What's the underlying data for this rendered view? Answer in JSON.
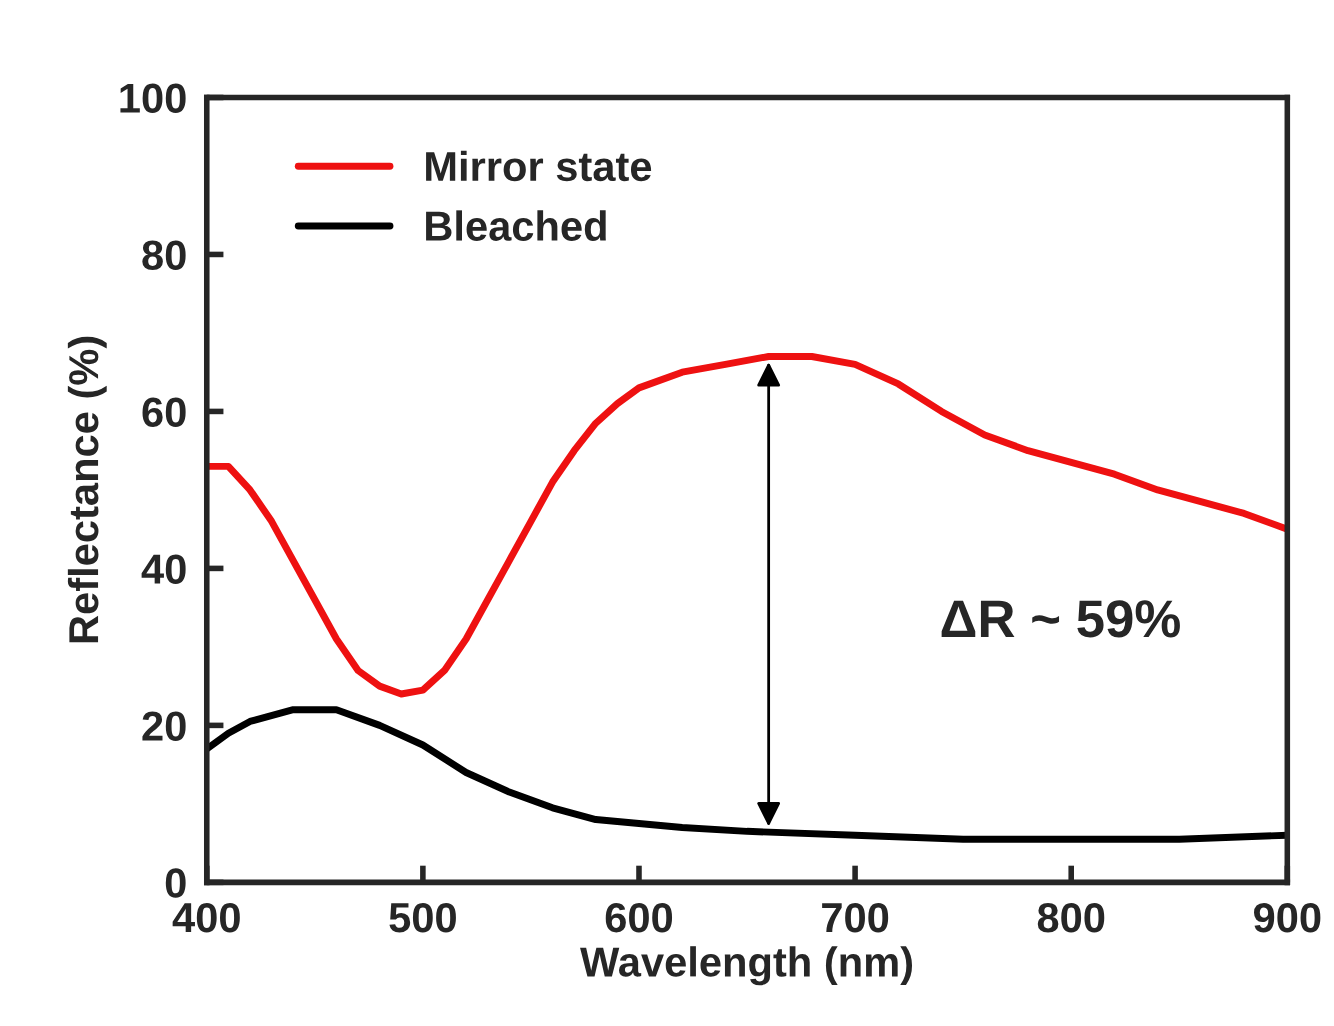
{
  "chart_data": {
    "type": "line",
    "xlabel": "Wavelength (nm)",
    "ylabel": "Reflectance (%)",
    "xlim": [
      400,
      900
    ],
    "ylim": [
      0,
      100
    ],
    "xticks": [
      400,
      500,
      600,
      700,
      800,
      900
    ],
    "yticks": [
      0,
      20,
      40,
      60,
      80,
      100
    ],
    "grid": false,
    "legend": "top left",
    "marker": "none",
    "line_style": "solid",
    "series": [
      {
        "name": "Mirror state",
        "color": "#ee1111",
        "x": [
          400,
          410,
          420,
          430,
          440,
          450,
          460,
          470,
          480,
          490,
          500,
          510,
          520,
          530,
          540,
          550,
          560,
          570,
          580,
          590,
          600,
          620,
          640,
          660,
          680,
          700,
          720,
          740,
          760,
          780,
          800,
          820,
          840,
          860,
          880,
          900
        ],
        "values": [
          53,
          53,
          50,
          46,
          41,
          36,
          31,
          27,
          25,
          24,
          24.5,
          27,
          31,
          36,
          41,
          46,
          51,
          55,
          58.5,
          61,
          63,
          65,
          66,
          67,
          67,
          66,
          63.5,
          60,
          57,
          55,
          53.5,
          52,
          50,
          48.5,
          47,
          45
        ]
      },
      {
        "name": "Bleached",
        "color": "#000000",
        "x": [
          400,
          410,
          420,
          440,
          460,
          480,
          500,
          520,
          540,
          560,
          580,
          600,
          620,
          650,
          700,
          750,
          800,
          850,
          900
        ],
        "values": [
          17,
          19,
          20.5,
          22,
          22,
          20,
          17.5,
          14,
          11.5,
          9.5,
          8,
          7.5,
          7,
          6.5,
          6,
          5.5,
          5.5,
          5.5,
          6
        ]
      }
    ],
    "annotations": [
      "ΔR ~ 59%"
    ]
  }
}
